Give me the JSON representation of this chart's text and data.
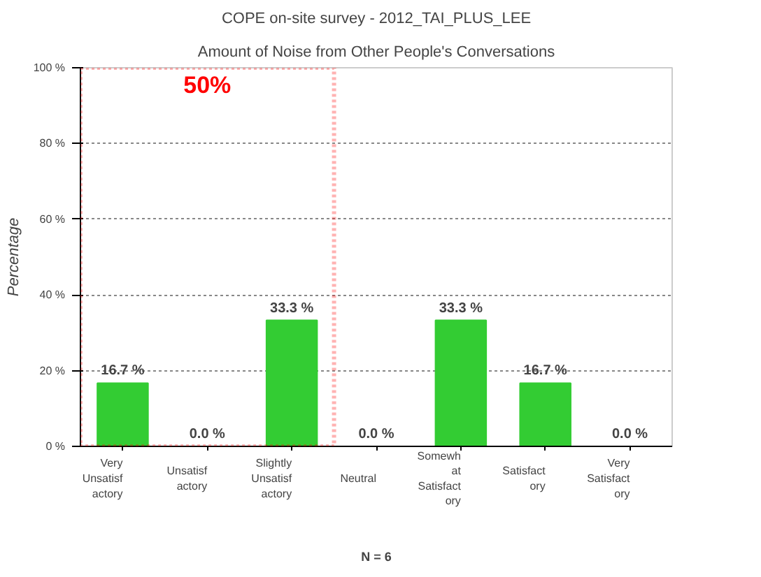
{
  "chart_data": {
    "type": "bar",
    "title": "COPE on-site survey - 2012_TAI_PLUS_LEE",
    "subtitle": "Amount of Noise from Other People's Conversations",
    "ylabel": "Percentage",
    "categories": [
      "Very\nUnsatisf\nactory",
      "Unsatisf\nactory",
      "Slightly\nUnsatisf\nactory",
      "Neutral",
      "Somewh\nat\nSatisfact\nory",
      "Satisfact\nory",
      "Very\nSatisfact\nory"
    ],
    "values": [
      16.7,
      0.0,
      33.3,
      0.0,
      33.3,
      16.7,
      0.0
    ],
    "value_labels": [
      "16.7 %",
      "0.0 %",
      "33.3 %",
      "0.0 %",
      "33.3 %",
      "16.7 %",
      "0.0 %"
    ],
    "color": "#33cc33",
    "ylim": [
      0,
      100
    ],
    "yticks": [
      {
        "value": 0,
        "label": "0 %"
      },
      {
        "value": 20,
        "label": "20 %"
      },
      {
        "value": 40,
        "label": "40 %"
      },
      {
        "value": 60,
        "label": "60 %"
      },
      {
        "value": 80,
        "label": "80 %"
      },
      {
        "value": 100,
        "label": "100 %"
      }
    ],
    "grid": "y",
    "annotations": [
      "50%",
      "N = 6"
    ]
  }
}
